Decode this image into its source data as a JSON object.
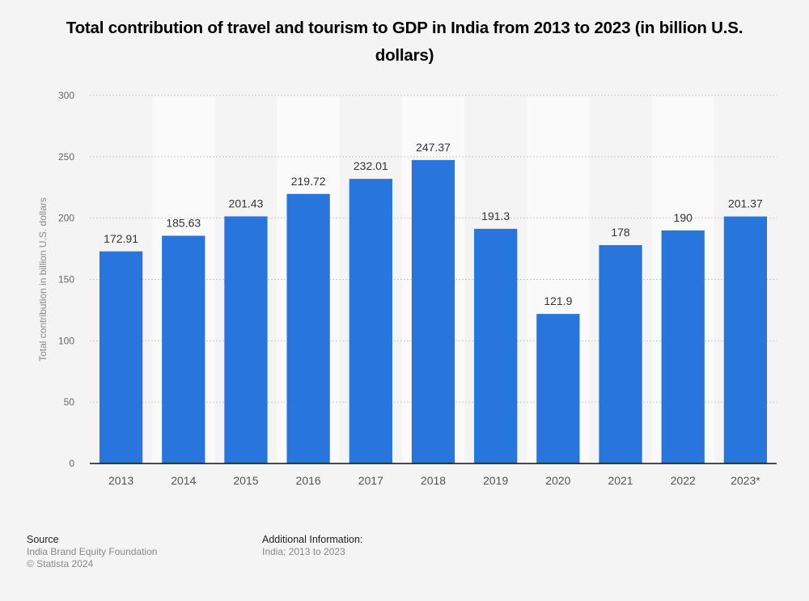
{
  "chart_data": {
    "type": "bar",
    "title": "Total contribution of travel and tourism to GDP in India from 2013 to 2023 (in billion U.S. dollars)",
    "xlabel": "",
    "ylabel": "Total contribution in billion U.S. dollars",
    "categories": [
      "2013",
      "2014",
      "2015",
      "2016",
      "2017",
      "2018",
      "2019",
      "2020",
      "2021",
      "2022",
      "2023*"
    ],
    "values": [
      172.91,
      185.63,
      201.43,
      219.72,
      232.01,
      247.37,
      191.3,
      121.9,
      178,
      190,
      201.37
    ],
    "data_labels": [
      "172.91",
      "185.63",
      "201.43",
      "219.72",
      "232.01",
      "247.37",
      "191.3",
      "121.9",
      "178",
      "190",
      "201.37"
    ],
    "ylim": [
      0,
      300
    ],
    "yticks": [
      0,
      50,
      100,
      150,
      200,
      250,
      300
    ],
    "grid": true,
    "legend": "none",
    "bar_color": "#2876dd"
  },
  "footer": {
    "source_heading": "Source",
    "source_lines": [
      "India Brand Equity Foundation",
      "© Statista 2024"
    ],
    "info_heading": "Additional Information:",
    "info_lines": [
      "India; 2013 to 2023"
    ]
  }
}
